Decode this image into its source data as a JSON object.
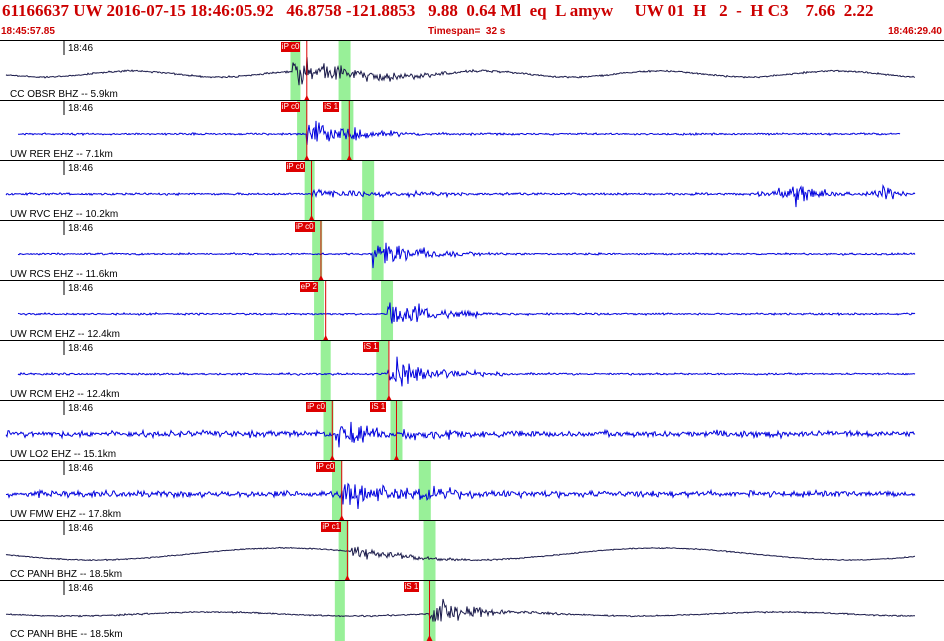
{
  "header": {
    "title": "61166637 UW 2016-07-15 18:46:05.92   46.8758 -121.8853   9.88  0.64 Ml  eq  L amyw     UW 01  H   2  -  H C3    7.66  2.22",
    "start_time": "18:45:57.85",
    "timespan": "Timespan=  32 s",
    "end_time": "18:46:29.40"
  },
  "colors": {
    "header_red": "#cc0000",
    "pick_red": "#dd0000",
    "trace_black": "#1a1a4a",
    "trace_blue": "#0000dd",
    "window_green": "#98f098"
  },
  "traces": [
    {
      "label": "CC OBSR BHZ -- 5.9km",
      "time_label": "18:46",
      "color": "#1a1a4a",
      "p_pick": "iP c0",
      "s_pick": "",
      "p_frac": 0.325,
      "s_frac": 0.0,
      "g1": 0.313,
      "g2": 0.365,
      "onset": 0.31,
      "style": "broadband"
    },
    {
      "label": "UW RER EHZ -- 7.1km",
      "time_label": "18:46",
      "color": "#0000dd",
      "p_pick": "iP c0",
      "s_pick": "iS 1",
      "p_frac": 0.325,
      "s_frac": 0.37,
      "g1": 0.32,
      "g2": 0.368,
      "onset": 0.325,
      "style": "short"
    },
    {
      "label": "UW RVC EHZ -- 10.2km",
      "time_label": "18:46",
      "color": "#0000dd",
      "p_pick": "iP c0",
      "s_pick": "",
      "p_frac": 0.33,
      "s_frac": 0.39,
      "g1": 0.328,
      "g2": 0.39,
      "onset": 0.33,
      "style": "rvc"
    },
    {
      "label": "UW RCS EHZ -- 11.6km",
      "time_label": "18:46",
      "color": "#0000dd",
      "p_pick": "iP c0",
      "s_pick": "",
      "p_frac": 0.34,
      "s_frac": 0.418,
      "g1": 0.336,
      "g2": 0.4,
      "onset": 0.395,
      "style": "short"
    },
    {
      "label": "UW RCM EHZ -- 12.4km",
      "time_label": "18:46",
      "color": "#0000dd",
      "p_pick": "eP 2",
      "s_pick": "",
      "p_frac": 0.345,
      "s_frac": 0.414,
      "g1": 0.338,
      "g2": 0.41,
      "onset": 0.41,
      "style": "short"
    },
    {
      "label": "UW RCM EH2 -- 12.4km",
      "time_label": "18:46",
      "color": "#0000dd",
      "p_pick": "",
      "s_pick": "iS 1",
      "p_frac": 0.0,
      "s_frac": 0.412,
      "g1": 0.345,
      "g2": 0.405,
      "onset": 0.41,
      "style": "short"
    },
    {
      "label": "UW LO2 EHZ -- 15.1km",
      "time_label": "18:46",
      "color": "#0000dd",
      "p_pick": "iP c0",
      "s_pick": "iS 1",
      "p_frac": 0.352,
      "s_frac": 0.42,
      "g1": 0.348,
      "g2": 0.42,
      "onset": 0.355,
      "style": "noisy"
    },
    {
      "label": "UW FMW EHZ -- 17.8km",
      "time_label": "18:46",
      "color": "#0000dd",
      "p_pick": "iP c0",
      "s_pick": "",
      "p_frac": 0.362,
      "s_frac": 0.443,
      "g1": 0.357,
      "g2": 0.45,
      "onset": 0.362,
      "style": "noisy"
    },
    {
      "label": "CC PANH BHZ -- 18.5km",
      "time_label": "18:46",
      "color": "#1a1a4a",
      "p_pick": "iP c1",
      "s_pick": "",
      "p_frac": 0.368,
      "s_frac": 0.455,
      "g1": 0.364,
      "g2": 0.455,
      "onset": 0.37,
      "style": "longperiod"
    },
    {
      "label": "CC PANH BHE -- 18.5km",
      "time_label": "18:46",
      "color": "#1a1a4a",
      "p_pick": "",
      "s_pick": "iS 1",
      "p_frac": 0.0,
      "s_frac": 0.455,
      "g1": 0.36,
      "g2": 0.455,
      "onset": 0.455,
      "style": "bhe"
    }
  ]
}
